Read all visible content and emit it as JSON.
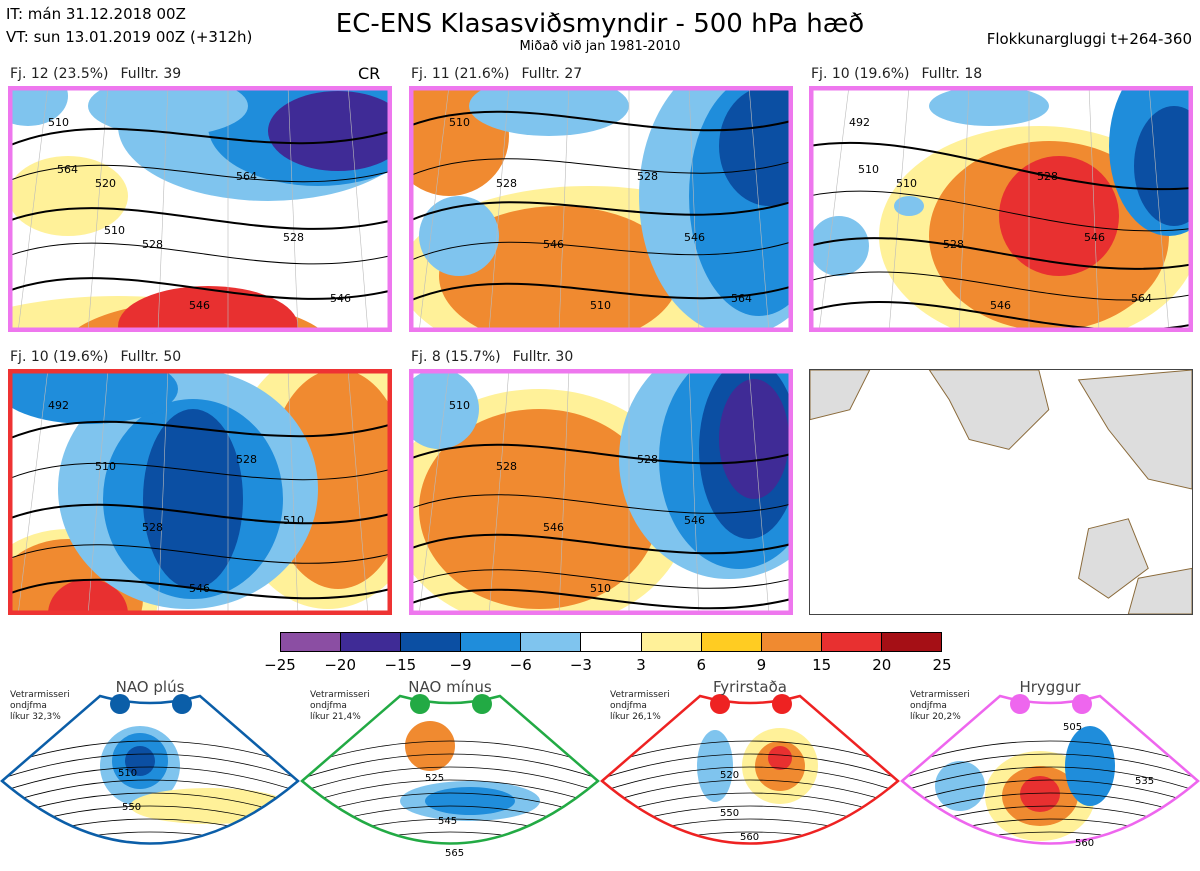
{
  "header": {
    "it": "IT: mán 31.12.2018 00Z",
    "vt": "VT: sun 13.01.2019 00Z  (+312h)",
    "title": "EC-ENS Klasasviðsmyndir - 500 hPa hæð",
    "subtitle": "Miðað við jan 1981-2010",
    "window": "Flokkunargluggi t+264-360"
  },
  "clusters": [
    {
      "name": "Fj. 12 (23.5%)",
      "members": "Fulltr. 39",
      "frame_color": "#ee77ee",
      "tag": "CR",
      "contours": [
        "510",
        "520",
        "528",
        "546",
        "564",
        "528",
        "546",
        "564",
        "510"
      ]
    },
    {
      "name": "Fj. 11 (21.6%)",
      "members": "Fulltr. 27",
      "frame_color": "#ee77ee",
      "contours": [
        "510",
        "528",
        "546",
        "510",
        "528",
        "546",
        "564"
      ]
    },
    {
      "name": "Fj. 10 (19.6%)",
      "members": "Fulltr. 18",
      "frame_color": "#ee77ee",
      "contours": [
        "492",
        "510",
        "528",
        "546",
        "528",
        "546",
        "564",
        "510"
      ]
    },
    {
      "name": "Fj. 10 (19.6%)",
      "members": "Fulltr. 50",
      "frame_color": "#ee3333",
      "contours": [
        "492",
        "510",
        "528",
        "546",
        "528",
        "510"
      ]
    },
    {
      "name": "Fj. 8 (15.7%)",
      "members": "Fulltr. 30",
      "frame_color": "#ee77ee",
      "contours": [
        "510",
        "528",
        "546",
        "510",
        "528",
        "546"
      ]
    }
  ],
  "colorbar": {
    "ticks": [
      "−25",
      "−20",
      "−15",
      "−9",
      "−6",
      "−3",
      "3",
      "6",
      "9",
      "15",
      "20",
      "25"
    ],
    "colors": [
      "#8b4ea3",
      "#3f2b96",
      "#0b4fa3",
      "#1f8ddb",
      "#7fc4ee",
      "#ffffff",
      "#fff199",
      "#ffcc22",
      "#f08a30",
      "#e83030",
      "#a50f15"
    ]
  },
  "regimes": [
    {
      "title": "NAO plús",
      "note": [
        "Vetrarmisseri",
        "ondjfma",
        "líkur 32,3%"
      ],
      "color": "#0b5ea8",
      "contours": [
        "510",
        "550"
      ]
    },
    {
      "title": "NAO mínus",
      "note": [
        "Vetrarmisseri",
        "ondjfma",
        "líkur 21,4%"
      ],
      "color": "#22aa44",
      "contours": [
        "525",
        "545",
        "565"
      ]
    },
    {
      "title": "Fyrirstaða",
      "note": [
        "Vetrarmisseri",
        "ondjfma",
        "líkur 26,1%"
      ],
      "color": "#ee2222",
      "contours": [
        "520",
        "550",
        "560"
      ]
    },
    {
      "title": "Hryggur",
      "note": [
        "Vetrarmisseri",
        "ondjfma",
        "líkur 20,2%"
      ],
      "color": "#ee66ee",
      "contours": [
        "505",
        "535",
        "560"
      ]
    }
  ]
}
